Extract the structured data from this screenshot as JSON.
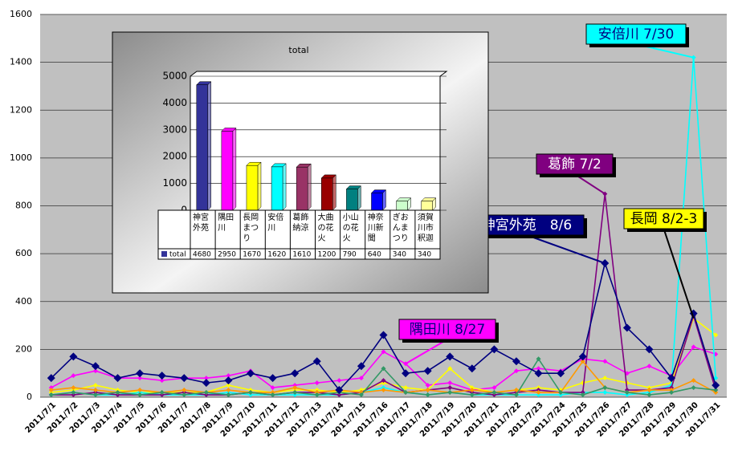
{
  "chart_data": [
    {
      "type": "line",
      "categories": [
        "2011/7/1",
        "2011/7/2",
        "2011/7/3",
        "2011/7/4",
        "2011/7/5",
        "2011/7/6",
        "2011/7/7",
        "2011/7/8",
        "2011/7/9",
        "2011/7/10",
        "2011/7/11",
        "2011/7/12",
        "2011/7/13",
        "2011/7/14",
        "2011/7/15",
        "2011/7/16",
        "2011/7/17",
        "2011/7/18",
        "2011/7/19",
        "2011/7/20",
        "2011/7/21",
        "2011/7/22",
        "2011/7/23",
        "2011/7/24",
        "2011/7/25",
        "2011/7/26",
        "2011/7/27",
        "2011/7/28",
        "2011/7/29",
        "2011/7/30",
        "2011/7/31"
      ],
      "ylim": [
        0,
        1600
      ],
      "yticks": [
        0,
        200,
        400,
        600,
        800,
        1000,
        1200,
        1400,
        1600
      ],
      "grid": true,
      "series": [
        {
          "color": "#ff00ff",
          "values": [
            40,
            90,
            110,
            80,
            80,
            70,
            80,
            80,
            90,
            110,
            40,
            50,
            60,
            70,
            80,
            190,
            140,
            50,
            60,
            30,
            40,
            110,
            120,
            110,
            160,
            150,
            100,
            130,
            90,
            210,
            180
          ]
        },
        {
          "color": "#ffff00",
          "values": [
            20,
            30,
            50,
            30,
            20,
            20,
            20,
            20,
            50,
            30,
            20,
            30,
            30,
            20,
            30,
            60,
            40,
            30,
            120,
            40,
            20,
            30,
            40,
            30,
            60,
            80,
            60,
            40,
            60,
            330,
            260
          ]
        },
        {
          "color": "#00ffff",
          "values": [
            10,
            20,
            10,
            10,
            20,
            10,
            10,
            10,
            20,
            10,
            10,
            10,
            10,
            10,
            20,
            40,
            20,
            10,
            20,
            10,
            10,
            10,
            10,
            10,
            20,
            20,
            10,
            20,
            50,
            1420,
            80
          ]
        },
        {
          "color": "#800080",
          "values": [
            10,
            10,
            20,
            10,
            10,
            10,
            20,
            10,
            10,
            20,
            10,
            20,
            20,
            10,
            20,
            70,
            20,
            30,
            40,
            20,
            10,
            20,
            30,
            20,
            20,
            850,
            30,
            30,
            40,
            340,
            30
          ]
        },
        {
          "color": "#ff9900",
          "values": [
            30,
            40,
            30,
            20,
            30,
            20,
            30,
            20,
            30,
            20,
            20,
            40,
            20,
            30,
            20,
            30,
            20,
            30,
            20,
            30,
            20,
            30,
            20,
            20,
            150,
            40,
            20,
            30,
            30,
            70,
            20
          ]
        },
        {
          "color": "#339966",
          "values": [
            10,
            20,
            10,
            20,
            10,
            20,
            10,
            20,
            10,
            20,
            10,
            20,
            10,
            20,
            10,
            120,
            20,
            10,
            20,
            10,
            20,
            10,
            160,
            20,
            10,
            40,
            20,
            10,
            20,
            40,
            30
          ]
        },
        {
          "color": "#000080",
          "values": [
            80,
            170,
            130,
            80,
            100,
            90,
            80,
            60,
            70,
            100,
            80,
            100,
            150,
            30,
            130,
            260,
            100,
            110,
            170,
            120,
            200,
            150,
            100,
            100,
            170,
            560,
            290,
            200,
            80,
            350,
            50
          ]
        }
      ],
      "annotations": [
        "安倍川 7/30",
        "葛飾 7/2",
        "神宮外苑　8/6",
        "長岡 8/2-3",
        "隅田川 8/27"
      ]
    },
    {
      "type": "bar",
      "title": "total",
      "categories": [
        "神宮外苑",
        "隅田川",
        "長岡まつり",
        "安倍川",
        "葛飾納涼",
        "大曲の花火",
        "小山の花火",
        "神奈川新聞",
        "ぎおんまつり",
        "須賀川市釈迦"
      ],
      "ylim": [
        0,
        5000
      ],
      "yticks": [
        0,
        1000,
        2000,
        3000,
        4000,
        5000
      ],
      "grid": true,
      "series": [
        {
          "name": "total",
          "color": "#333399",
          "values": [
            4680,
            2950,
            1670,
            1620,
            1610,
            1200,
            790,
            640,
            340,
            340
          ],
          "colors": [
            "#333399",
            "#ff00ff",
            "#ffff00",
            "#00ffff",
            "#993366",
            "#990000",
            "#008080",
            "#0000ff",
            "#ccffcc",
            "#ffff99"
          ]
        }
      ]
    }
  ]
}
